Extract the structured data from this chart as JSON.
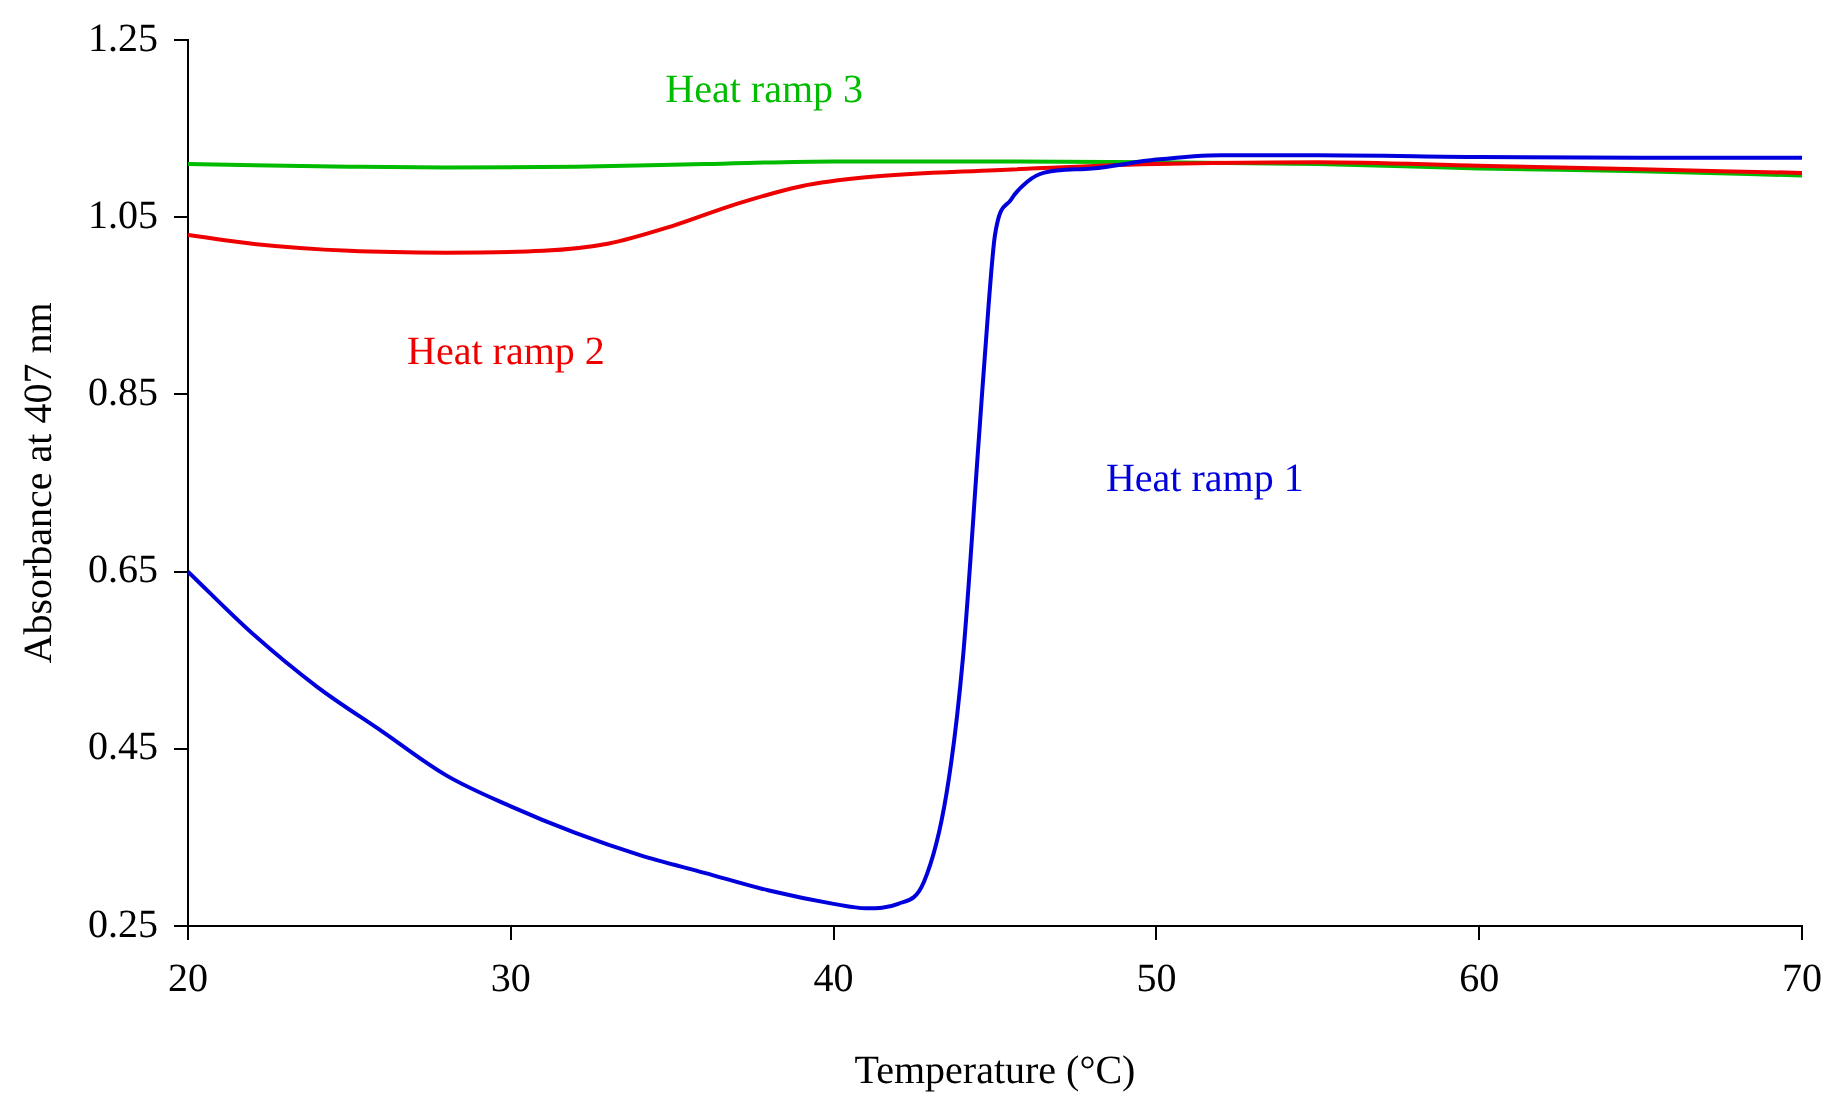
{
  "chart_data": {
    "type": "line",
    "xlabel": "Temperature (°C)",
    "ylabel": "Absorbance at 407 nm",
    "xlim": [
      20,
      70
    ],
    "xticks": [
      20,
      30,
      40,
      50,
      60,
      70
    ],
    "ylim": [
      0.25,
      1.25
    ],
    "yticks": [
      {
        "value": 0.25,
        "label": "0.25"
      },
      {
        "value": 0.45,
        "label": "0.45"
      },
      {
        "value": 0.65,
        "label": "0.65"
      },
      {
        "value": 0.85,
        "label": "0.85"
      },
      {
        "value": 1.05,
        "label": "1.05"
      },
      {
        "value": 1.25,
        "label": "1.25"
      }
    ],
    "grid": false,
    "legend": false,
    "marker": "none",
    "line_style": "solid",
    "series": [
      {
        "color": "#0000dd",
        "x": [
          20,
          22,
          24,
          26,
          28,
          30,
          32,
          34,
          36,
          38,
          40,
          41,
          42,
          42.8,
          43.5,
          44,
          44.5,
          44.8,
          45,
          45.5,
          46,
          46.5,
          48,
          50,
          52,
          55,
          60,
          65,
          70
        ],
        "values": [
          0.65,
          0.58,
          0.52,
          0.47,
          0.42,
          0.385,
          0.355,
          0.33,
          0.31,
          0.29,
          0.275,
          0.27,
          0.275,
          0.3,
          0.4,
          0.55,
          0.8,
          0.95,
          1.03,
          1.07,
          1.09,
          1.1,
          1.105,
          1.115,
          1.12,
          1.12,
          1.118,
          1.117,
          1.117
        ]
      },
      {
        "color": "#ee0000",
        "x": [
          20,
          22,
          25,
          28,
          31,
          33,
          35,
          37,
          39,
          41,
          45,
          50,
          55,
          60,
          65,
          70
        ],
        "values": [
          1.03,
          1.02,
          1.012,
          1.01,
          1.012,
          1.02,
          1.04,
          1.065,
          1.085,
          1.095,
          1.103,
          1.11,
          1.112,
          1.108,
          1.104,
          1.1
        ]
      },
      {
        "color": "#00bb00",
        "x": [
          20,
          25,
          28,
          32,
          36,
          40,
          45,
          50,
          55,
          60,
          65,
          70
        ],
        "values": [
          1.11,
          1.107,
          1.106,
          1.107,
          1.11,
          1.113,
          1.113,
          1.112,
          1.11,
          1.105,
          1.102,
          1.097
        ]
      }
    ],
    "annotations": [
      "Heat ramp 1",
      "Heat ramp 2",
      "Heat ramp 3"
    ]
  }
}
